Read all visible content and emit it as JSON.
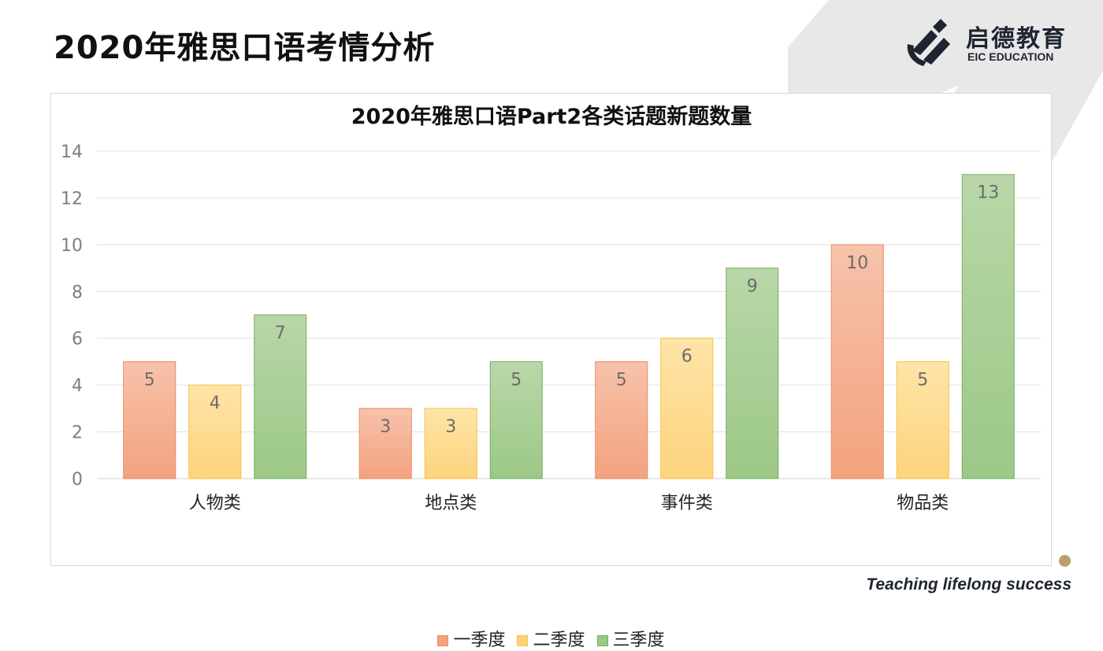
{
  "page": {
    "title": "2020年雅思口语考情分析",
    "logo_cn": "启德教育",
    "logo_en": "EIC EDUCATION",
    "tagline": "Teaching lifelong success"
  },
  "colors": {
    "q1_top": "#f7c2ab",
    "q1_bottom": "#f3a27e",
    "q1_border": "#ed8a5e",
    "q2_top": "#fee4a8",
    "q2_bottom": "#fdd37c",
    "q2_border": "#f6c143",
    "q3_top": "#b9d7a8",
    "q3_bottom": "#9cc887",
    "q3_border": "#79ae5f",
    "stripe": "#e6e6e6",
    "dot": "#b9a06a"
  },
  "chart_data": {
    "type": "bar",
    "title": "2020年雅思口语Part2各类话题新题数量",
    "categories": [
      "人物类",
      "地点类",
      "事件类",
      "物品类"
    ],
    "series": [
      {
        "name": "一季度",
        "values": [
          5,
          3,
          5,
          10
        ]
      },
      {
        "name": "二季度",
        "values": [
          4,
          3,
          6,
          5
        ]
      },
      {
        "name": "三季度",
        "values": [
          7,
          5,
          9,
          13
        ]
      }
    ],
    "ylim": [
      0,
      14
    ],
    "yticks": [
      "0",
      "2",
      "4",
      "6",
      "8",
      "10",
      "12",
      "14"
    ],
    "grid": true,
    "data_labels": true,
    "legend": "bottom"
  }
}
